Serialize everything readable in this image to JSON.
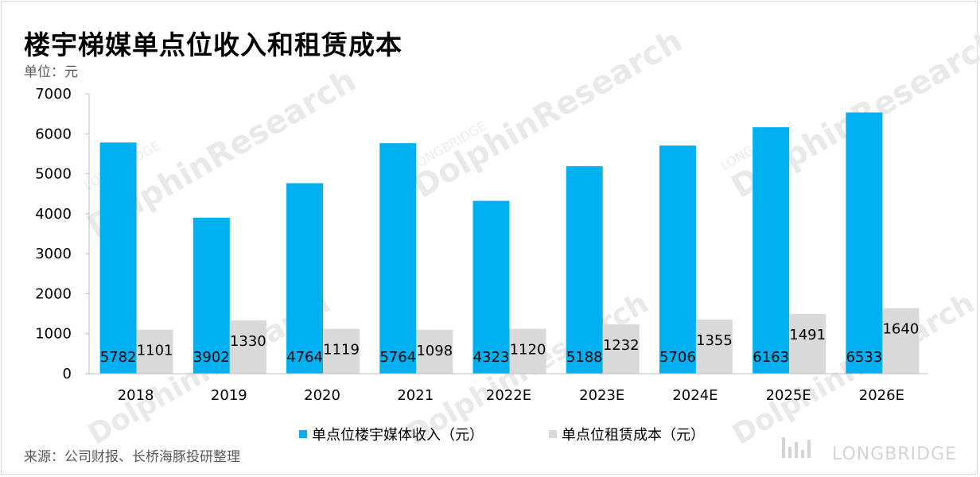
{
  "page": {
    "title": "楼宇梯媒单点位收入和租赁成本",
    "unit": "单位：元",
    "source": "来源：公司财报、长桥海豚投研整理",
    "logo": "LONGBRIDGE",
    "watermark": "DolphinResearch",
    "watermark_small": "LONGBRIDGE"
  },
  "chart_data": {
    "type": "bar",
    "categories": [
      "2018",
      "2019",
      "2020",
      "2021",
      "2022E",
      "2023E",
      "2024E",
      "2025E",
      "2026E"
    ],
    "series": [
      {
        "name": "单点位楼宇媒体收入（元）",
        "color": "#00b0f0",
        "values": [
          5782,
          3902,
          4764,
          5764,
          4323,
          5188,
          5706,
          6163,
          6533
        ]
      },
      {
        "name": "单点位租赁成本（元）",
        "color": "#d9d9d9",
        "values": [
          1101,
          1330,
          1119,
          1098,
          1120,
          1232,
          1355,
          1491,
          1640
        ]
      }
    ],
    "yticks": [
      0,
      1000,
      2000,
      3000,
      4000,
      5000,
      6000,
      7000
    ],
    "ylim": [
      0,
      7000
    ],
    "grid": false,
    "legend": "bottom-center"
  }
}
